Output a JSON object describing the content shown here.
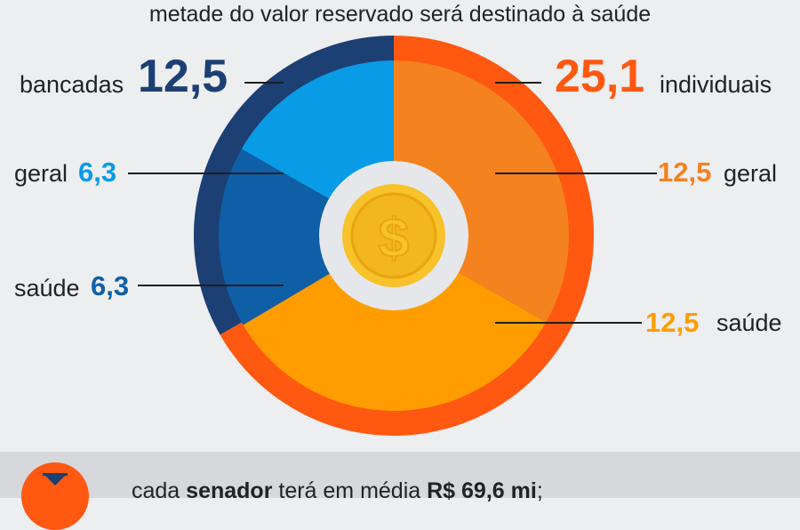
{
  "subtitle": "metade do valor reservado será destinado à saúde",
  "chart_data": {
    "type": "pie",
    "outer_ring": [
      {
        "name": "bancadas",
        "value": 12.5,
        "display": "12,5",
        "color": "#1c3f74"
      },
      {
        "name": "individuais",
        "value": 25.1,
        "display": "25,1",
        "color": "#ff5810"
      }
    ],
    "inner_slices": [
      {
        "group": "individuais",
        "name": "geral",
        "value": 12.5,
        "display": "12,5",
        "color": "#f3821f"
      },
      {
        "group": "individuais",
        "name": "saúde",
        "value": 12.5,
        "display": "12,5",
        "color": "#ff9d00"
      },
      {
        "group": "bancadas",
        "name": "saúde",
        "value": 6.3,
        "display": "6,3",
        "color": "#0f5fa6"
      },
      {
        "group": "bancadas",
        "name": "geral",
        "value": 6.3,
        "display": "6,3",
        "color": "#0a9be6"
      }
    ],
    "center_icon": "dollar-coin-icon"
  },
  "colors": {
    "background": "#edeef0",
    "coin": "#f7c22a",
    "coin_ring": "#ffffff"
  },
  "footer": {
    "icon": "hourglass-icon",
    "text_pre": "cada ",
    "text_bold1": "senador",
    "text_mid": " terá em média ",
    "text_bold2": "R$ 69,6 mi",
    "text_post": ";"
  }
}
